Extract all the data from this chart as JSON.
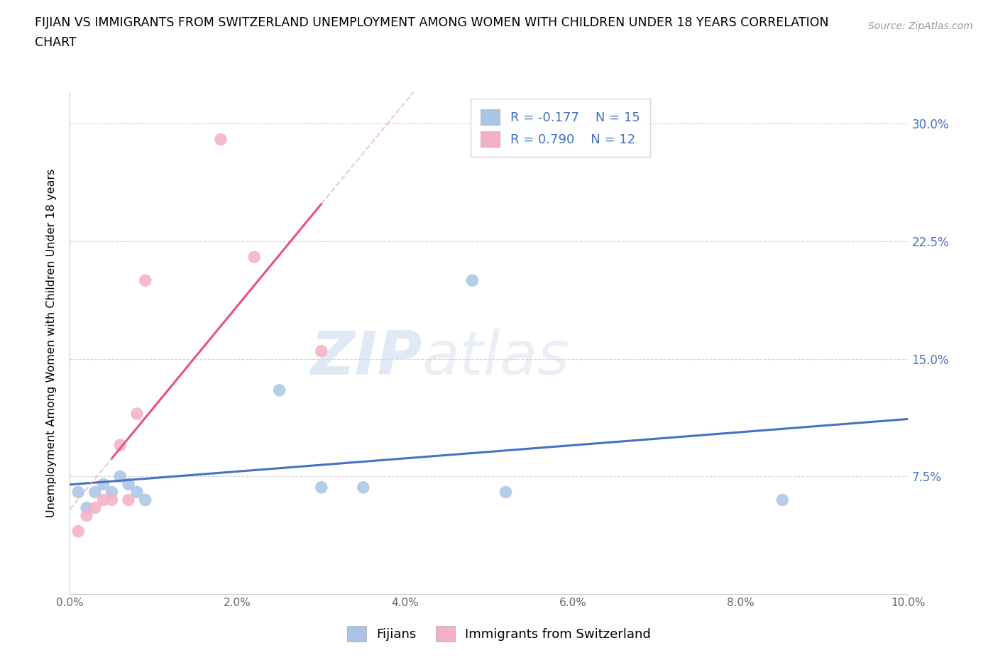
{
  "title_line1": "FIJIAN VS IMMIGRANTS FROM SWITZERLAND UNEMPLOYMENT AMONG WOMEN WITH CHILDREN UNDER 18 YEARS CORRELATION",
  "title_line2": "CHART",
  "source": "Source: ZipAtlas.com",
  "ylabel": "Unemployment Among Women with Children Under 18 years",
  "xlim": [
    0.0,
    0.1
  ],
  "ylim": [
    0.0,
    0.32
  ],
  "xticks": [
    0.0,
    0.02,
    0.04,
    0.06,
    0.08,
    0.1
  ],
  "yticks": [
    0.0,
    0.075,
    0.15,
    0.225,
    0.3
  ],
  "ytick_labels": [
    "",
    "7.5%",
    "15.0%",
    "22.5%",
    "30.0%"
  ],
  "xtick_labels": [
    "0.0%",
    "2.0%",
    "4.0%",
    "6.0%",
    "8.0%",
    "10.0%"
  ],
  "fijians_x": [
    0.001,
    0.002,
    0.003,
    0.004,
    0.005,
    0.006,
    0.007,
    0.008,
    0.009,
    0.025,
    0.03,
    0.035,
    0.048,
    0.052,
    0.085
  ],
  "fijians_y": [
    0.065,
    0.055,
    0.065,
    0.07,
    0.065,
    0.075,
    0.07,
    0.065,
    0.06,
    0.13,
    0.068,
    0.068,
    0.2,
    0.065,
    0.06
  ],
  "swiss_x": [
    0.001,
    0.002,
    0.003,
    0.004,
    0.005,
    0.006,
    0.007,
    0.008,
    0.009,
    0.018,
    0.022,
    0.03
  ],
  "swiss_y": [
    0.04,
    0.05,
    0.055,
    0.06,
    0.06,
    0.095,
    0.06,
    0.115,
    0.2,
    0.29,
    0.215,
    0.155
  ],
  "fijian_color": "#aac4e8",
  "swiss_color": "#f4b0c4",
  "fijian_line_color": "#4472c4",
  "swiss_line_color": "#e8537a",
  "fijian_r": -0.177,
  "fijian_n": 15,
  "swiss_r": 0.79,
  "swiss_n": 12,
  "legend_label_fijian": "Fijians",
  "legend_label_swiss": "Immigrants from Switzerland",
  "watermark_zip": "ZIP",
  "watermark_atlas": "atlas",
  "background_color": "#ffffff",
  "title_color": "#000000",
  "axis_label_color": "#000000",
  "tick_color_right": "#4472c4",
  "grid_color": "#cccccc"
}
